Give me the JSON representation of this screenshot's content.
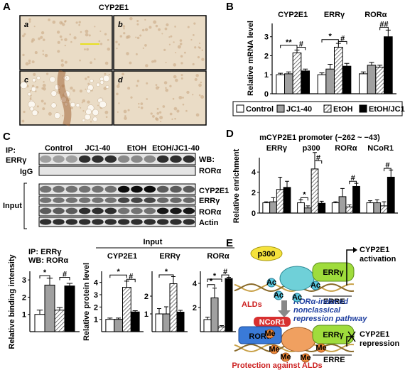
{
  "panel_labels": [
    "A",
    "B",
    "C",
    "D",
    "E"
  ],
  "panel_a": {
    "title": "CYP2E1",
    "images": [
      "a",
      "b",
      "c",
      "d"
    ]
  },
  "panel_c": {
    "ip": "IP:",
    "ip_target": "ERRγ",
    "igg": "IgG",
    "input": "Input",
    "groups": [
      "Control",
      "JC1-40",
      "EtOH",
      "EtOH/JC1-40"
    ],
    "wb": "WB:",
    "wb_target": "RORα",
    "input_rows": [
      "CYP2E1",
      "ERRγ",
      "RORα",
      "Actin"
    ],
    "input_header": "Input"
  },
  "panel_e": {
    "coactivator": "p300",
    "receptor": "ERRγ",
    "activation": [
      "CYP2E1",
      "activation"
    ],
    "element": "ERRE",
    "disease": "ALDs",
    "pathway": [
      "RORα-induced",
      "nonclassical",
      "repression pathway"
    ],
    "corepressor": "NCoR1",
    "repressor": "RORα",
    "repression": [
      "CYP2E1",
      "repression"
    ],
    "protection": "Protection against ALDs",
    "acetyl": "Ac",
    "methyl": "Me"
  },
  "chart_data": [
    {
      "type": "bar",
      "ylabel": "Relative mRNA level",
      "categories": [
        "CYP2E1",
        "ERRγ",
        "RORα"
      ],
      "series": [
        {
          "name": "Control",
          "color": "#ffffff",
          "values": [
            1.0,
            1.0,
            1.05
          ],
          "errors": [
            0.08,
            0.1,
            0.1
          ]
        },
        {
          "name": "JC1-40",
          "color": "#a0a0a0",
          "values": [
            1.05,
            1.3,
            1.5
          ],
          "errors": [
            0.1,
            0.25,
            0.15
          ]
        },
        {
          "name": "EtOH",
          "color": "#ffffff",
          "pattern": "hatch",
          "values": [
            2.15,
            2.45,
            1.4
          ],
          "errors": [
            0.15,
            0.2,
            0.1
          ]
        },
        {
          "name": "EtOH/JC1-40",
          "color": "#000000",
          "values": [
            1.2,
            1.45,
            3.0
          ],
          "errors": [
            0.1,
            0.15,
            0.35
          ]
        }
      ],
      "ylim": [
        0,
        3.7
      ],
      "yticks": [
        0,
        1,
        2,
        3
      ],
      "annotations": [
        "**",
        "#",
        "*",
        "#",
        "##"
      ]
    },
    {
      "type": "bar",
      "title": "IP: ERRγ",
      "subtitle": "WB: RORα",
      "ylabel": "Relative binding intensity",
      "series": [
        {
          "color": "#ffffff",
          "values": [
            1.0
          ],
          "errors": [
            0.25
          ]
        },
        {
          "color": "#a0a0a0",
          "values": [
            2.7
          ],
          "errors": [
            0.4
          ]
        },
        {
          "color": "#ffffff",
          "pattern": "hatch",
          "values": [
            1.25
          ],
          "errors": [
            0.15
          ]
        },
        {
          "color": "#000000",
          "values": [
            2.65
          ],
          "errors": [
            0.15
          ]
        }
      ],
      "ylim": [
        0,
        3.5
      ],
      "yticks": [
        1,
        2,
        3
      ],
      "annotations": [
        "*",
        "#"
      ]
    },
    {
      "type": "bar",
      "title": "CYP2E1",
      "ylabel": "Relative protein level",
      "series": [
        {
          "color": "#ffffff",
          "values": [
            1.0
          ],
          "errors": [
            0.1
          ]
        },
        {
          "color": "#a0a0a0",
          "values": [
            1.0
          ],
          "errors": [
            0.1
          ]
        },
        {
          "color": "#ffffff",
          "pattern": "hatch",
          "values": [
            3.6
          ],
          "errors": [
            0.5
          ]
        },
        {
          "color": "#000000",
          "values": [
            1.6
          ],
          "errors": [
            0.1
          ]
        }
      ],
      "ylim": [
        0,
        4.9
      ],
      "yticks": [
        1,
        2,
        3,
        4
      ],
      "annotations": [
        "*",
        "#"
      ]
    },
    {
      "type": "bar",
      "title": "ERRγ",
      "series": [
        {
          "color": "#ffffff",
          "values": [
            1.0
          ],
          "errors": [
            0.3
          ]
        },
        {
          "color": "#a0a0a0",
          "values": [
            1.0
          ],
          "errors": [
            0.4
          ]
        },
        {
          "color": "#ffffff",
          "pattern": "hatch",
          "values": [
            2.7
          ],
          "errors": [
            0.4
          ]
        },
        {
          "color": "#000000",
          "values": [
            1.1
          ],
          "errors": [
            0.1
          ]
        }
      ],
      "ylim": [
        0,
        3.4
      ],
      "yticks": [
        1,
        2
      ],
      "annotations": [
        "*"
      ]
    },
    {
      "type": "bar",
      "title": "RORα",
      "series": [
        {
          "color": "#ffffff",
          "values": [
            1.0
          ],
          "errors": [
            0.2
          ]
        },
        {
          "color": "#a0a0a0",
          "values": [
            2.8
          ],
          "errors": [
            0.8
          ]
        },
        {
          "color": "#ffffff",
          "pattern": "hatch",
          "values": [
            0.4
          ],
          "errors": [
            0.1
          ]
        },
        {
          "color": "#000000",
          "values": [
            4.4
          ],
          "errors": [
            0.1
          ]
        }
      ],
      "ylim": [
        0,
        5
      ],
      "yticks": [
        2,
        4
      ],
      "annotations": [
        "*",
        "*",
        "#"
      ]
    },
    {
      "type": "bar",
      "title": "mCYP2E1 promoter (−262 ~ −43)",
      "ylabel": "Relative enrichment",
      "categories": [
        "ERRγ",
        "p300",
        "RORα",
        "NCoR1"
      ],
      "series": [
        {
          "color": "#ffffff",
          "values": [
            1.0,
            1.0,
            1.0,
            1.0
          ],
          "errors": [
            0.1,
            0.3,
            0.1,
            0.2
          ]
        },
        {
          "color": "#a0a0a0",
          "values": [
            1.1,
            0.5,
            1.6,
            1.0
          ],
          "errors": [
            0.4,
            0.2,
            0.8,
            0.3
          ]
        },
        {
          "color": "#ffffff",
          "pattern": "hatch",
          "values": [
            2.3,
            4.3,
            0.6,
            0.7
          ],
          "errors": [
            1.2,
            1.6,
            0.2,
            0.4
          ]
        },
        {
          "color": "#000000",
          "values": [
            2.5,
            0.95,
            2.6,
            3.5
          ],
          "errors": [
            0.6,
            0.2,
            0.3,
            0.7
          ]
        }
      ],
      "ylim": [
        0,
        5.4
      ],
      "yticks": [
        0,
        2,
        4
      ],
      "annotations": [
        "*",
        "#",
        "#",
        "#"
      ]
    }
  ]
}
